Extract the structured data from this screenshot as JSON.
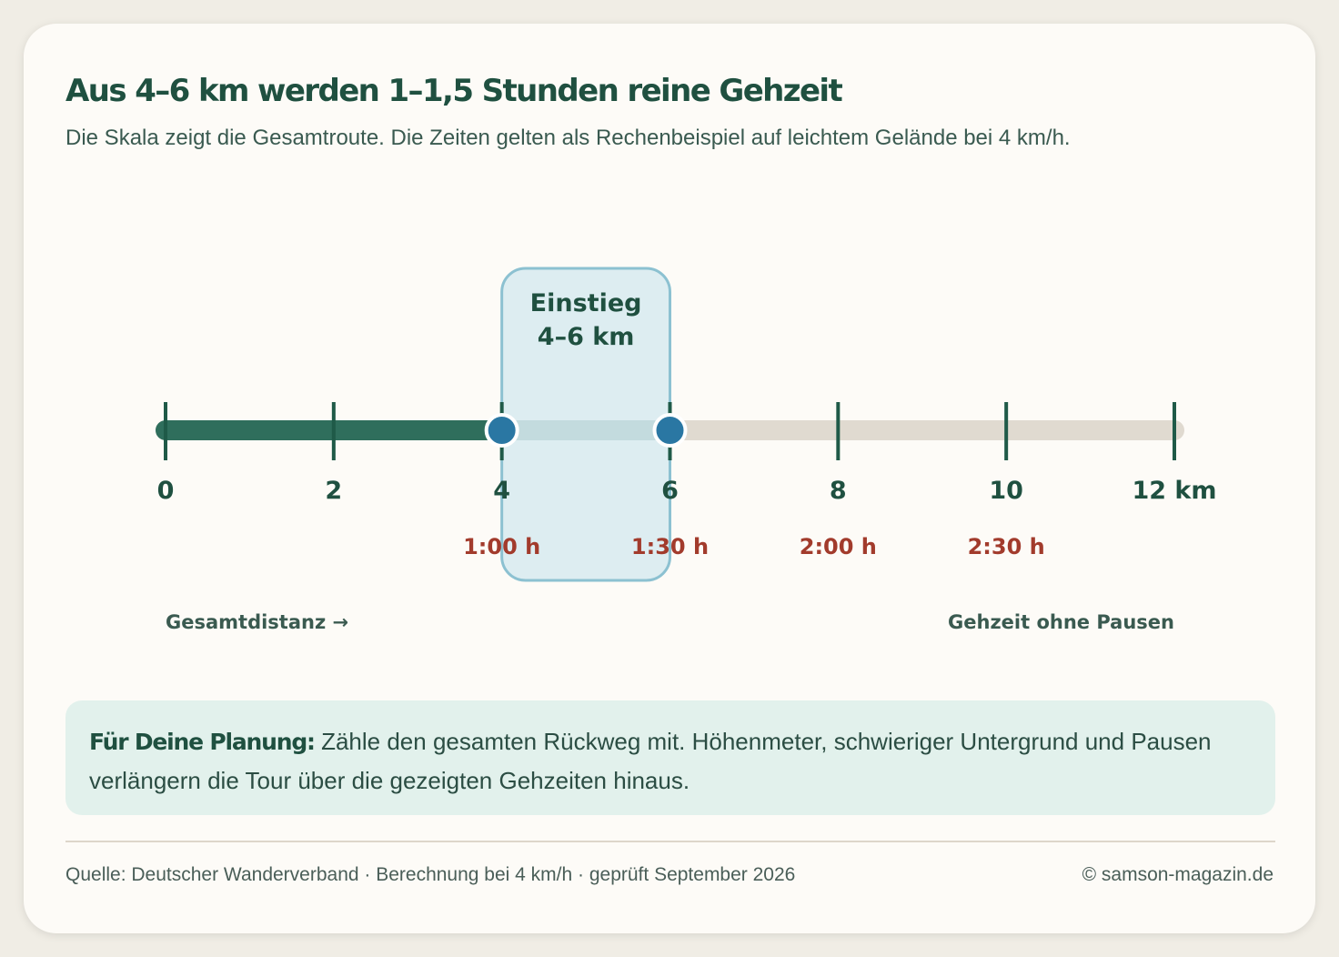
{
  "title": "Aus 4–6 km werden 1–1,5 Stunden reine Gehzeit",
  "subtitle": "Die Skala zeigt die Gesamtroute. Die Zeiten gelten als Rechenbeispiel auf leichtem Gelände bei 4 km/h.",
  "chart_data": {
    "type": "number-line",
    "axis": {
      "min": 0,
      "max": 12,
      "unit": "km"
    },
    "ticks": [
      {
        "value": 0,
        "label": "0",
        "time": ""
      },
      {
        "value": 2,
        "label": "2",
        "time": ""
      },
      {
        "value": 4,
        "label": "4",
        "time": "1:00 h"
      },
      {
        "value": 6,
        "label": "6",
        "time": "1:30 h"
      },
      {
        "value": 8,
        "label": "8",
        "time": "2:00 h"
      },
      {
        "value": 10,
        "label": "10",
        "time": "2:30 h"
      },
      {
        "value": 12,
        "label": "12 km",
        "time": ""
      }
    ],
    "filled_range": [
      0,
      6
    ],
    "markers": [
      4,
      6
    ],
    "highlight": {
      "from": 4,
      "to": 6,
      "label_line1": "Einstieg",
      "label_line2": "4–6 km"
    },
    "legend_left": "Gesamtdistanz →",
    "legend_right": "Gehzeit ohne Pausen",
    "colors": {
      "filled": "#2f6e5c",
      "track": "#e0dad0",
      "tick": "#1f5a48",
      "marker": "#2a77a3",
      "time": "#a23b2c",
      "highlight_fill": "#d8ebf0",
      "highlight_stroke": "#8cc1d1"
    }
  },
  "planning": {
    "lead": "Für Deine Planung:",
    "text": " Zähle den gesamten Rückweg mit. Höhenmeter, schwieriger Untergrund und Pausen verlängern die Tour über die gezeigten Gehzeiten hinaus."
  },
  "footer": {
    "source": "Quelle: Deutscher Wanderverband · Berechnung bei 4 km/h · geprüft September 2026",
    "copyright": "© samson-magazin.de"
  }
}
